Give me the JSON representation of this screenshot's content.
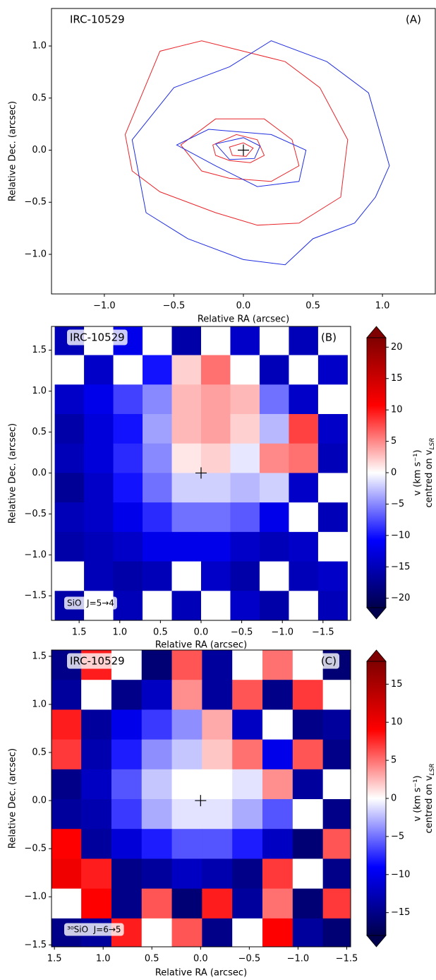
{
  "chart_data": [
    {
      "type": "contour",
      "title": "IRC-10529",
      "panel_label": "(A)",
      "x_label": "Relative RA (arcsec)",
      "y_label": "Relative Dec. (arcsec)",
      "xlim": [
        -1.38,
        1.38
      ],
      "ylim": [
        -1.38,
        1.36
      ],
      "xticks": [
        {
          "value": -1,
          "label": "−1.0"
        },
        {
          "value": -0.5,
          "label": "−0.5"
        },
        {
          "value": 0,
          "label": "0.0"
        },
        {
          "value": 0.5,
          "label": "0.5"
        },
        {
          "value": 1,
          "label": "1.0"
        }
      ],
      "yticks": [
        {
          "value": -1,
          "label": "−1.0"
        },
        {
          "value": -0.5,
          "label": "−0.5"
        },
        {
          "value": 0,
          "label": "0.0"
        },
        {
          "value": 0.5,
          "label": "0.5"
        },
        {
          "value": 1,
          "label": "1.0"
        }
      ],
      "series": [
        {
          "color": "#e8252a",
          "contours": [
            {
              "x": [
                -0.85,
                -0.6,
                -0.3,
                0.0,
                0.3,
                0.55,
                0.75,
                0.7,
                0.4,
                0.1,
                -0.2,
                -0.6,
                -0.8
              ],
              "y": [
                0.15,
                0.95,
                1.05,
                0.95,
                0.85,
                0.6,
                0.1,
                -0.45,
                -0.7,
                -0.72,
                -0.6,
                -0.4,
                -0.2
              ]
            },
            {
              "x": [
                -0.45,
                -0.2,
                0.15,
                0.35,
                0.4,
                0.2,
                -0.1,
                -0.3
              ],
              "y": [
                0.05,
                0.3,
                0.3,
                0.1,
                -0.15,
                -0.3,
                -0.27,
                -0.2
              ]
            },
            {
              "x": [
                -0.22,
                -0.05,
                0.1,
                0.15,
                0.05,
                -0.1,
                -0.2
              ],
              "y": [
                0.05,
                0.15,
                0.1,
                -0.05,
                -0.12,
                -0.1,
                -0.05
              ]
            },
            {
              "x": [
                -0.1,
                0,
                0.07,
                0.02,
                -0.08
              ],
              "y": [
                0.03,
                0.07,
                0.02,
                -0.06,
                -0.05
              ]
            }
          ]
        },
        {
          "color": "#1f2de0",
          "contours": [
            {
              "x": [
                -0.8,
                -0.5,
                -0.1,
                0.2,
                0.6,
                0.9,
                1.05,
                0.95,
                0.8,
                0.5,
                0.3,
                0.0,
                -0.4,
                -0.7
              ],
              "y": [
                0.1,
                0.6,
                0.8,
                1.05,
                0.85,
                0.55,
                -0.15,
                -0.45,
                -0.7,
                -0.85,
                -1.1,
                -1.05,
                -0.85,
                -0.6
              ]
            },
            {
              "x": [
                -0.48,
                -0.25,
                0.2,
                0.45,
                0.4,
                0.1,
                -0.2
              ],
              "y": [
                0.05,
                0.2,
                0.15,
                0.0,
                -0.3,
                -0.35,
                -0.15
              ]
            },
            {
              "x": [
                -0.2,
                0,
                0.12,
                0.08,
                -0.1
              ],
              "y": [
                0.06,
                0.12,
                0.04,
                -0.08,
                -0.09
              ]
            }
          ]
        }
      ]
    },
    {
      "type": "heatmap",
      "title": "IRC-10529",
      "panel_label": "(B)",
      "line_label": "SiO  J=5→4",
      "x_label": "Relative RA (arcsec)",
      "y_label": "Relative Dec. (arcsec)",
      "colorbar_label": "v (km s⁻¹)",
      "colorbar_label2": "centred on v",
      "colorbar_label2_sub": "LSR",
      "xlim": [
        1.84,
        -1.84
      ],
      "ylim": [
        -1.8,
        1.79
      ],
      "xticks": [
        1.5,
        {
          "value": 1,
          "label": "1.0"
        },
        0.5,
        {
          "value": 0,
          "label": "0.0"
        },
        {
          "value": -0.5,
          "label": "−0.5"
        },
        {
          "value": -1,
          "label": "−1.0"
        },
        {
          "value": -1.5,
          "label": "−1.5"
        }
      ],
      "yticks": [
        1.5,
        {
          "value": 1,
          "label": "1.0"
        },
        0.5,
        {
          "value": 0,
          "label": "0.0"
        },
        {
          "value": -0.5,
          "label": "−0.5"
        },
        {
          "value": -1,
          "label": "−1.0"
        },
        {
          "value": -1.5,
          "label": "−1.5"
        }
      ],
      "clim": [
        -21.5,
        21.5
      ],
      "cticks": [
        20,
        15,
        10,
        5,
        0,
        {
          "value": -5,
          "label": "−5"
        },
        {
          "value": -10,
          "label": "−10"
        },
        {
          "value": -15,
          "label": "−15"
        },
        {
          "value": -20,
          "label": "−20"
        }
      ],
      "colormap": [
        "#00004c",
        "#0000ff",
        "#ffffff",
        "#ff0000",
        "#7f0000"
      ],
      "x": [
        1.62,
        1.26,
        0.9,
        0.54,
        0.18,
        -0.18,
        -0.54,
        -0.9,
        -1.26,
        -1.62
      ],
      "y": [
        1.62,
        1.26,
        0.9,
        0.54,
        0.18,
        -0.18,
        -0.54,
        -0.9,
        -1.26,
        -1.62
      ],
      "z": [
        [
          -15,
          0,
          -12,
          0,
          -16,
          0,
          -14,
          0,
          -15,
          0
        ],
        [
          0,
          -14,
          0,
          -10,
          2,
          6,
          0,
          -15,
          0,
          -14
        ],
        [
          -14,
          -12,
          -8,
          -5,
          3,
          4,
          3,
          -6,
          -14,
          0
        ],
        [
          -16,
          -13,
          -10,
          -4,
          3,
          4,
          2,
          -3,
          8,
          -14
        ],
        [
          -15,
          -13,
          -9,
          -5,
          1,
          2,
          -1,
          5,
          6,
          -15
        ],
        [
          -17,
          -14,
          -10,
          -6,
          -2,
          -2,
          -3,
          -2,
          -14,
          0
        ],
        [
          -15,
          -14,
          -12,
          -9,
          -6,
          -6,
          -7,
          -12,
          0,
          -15
        ],
        [
          -16,
          -15,
          -14,
          -12,
          -12,
          -12,
          -14,
          -15,
          -14,
          0
        ],
        [
          0,
          -15,
          -16,
          -15,
          0,
          -14,
          -16,
          0,
          -15,
          -14
        ],
        [
          -16,
          0,
          -15,
          0,
          -15,
          0,
          -14,
          -16,
          0,
          -15
        ]
      ]
    },
    {
      "type": "heatmap",
      "title": "IRC-10529",
      "panel_label": "(C)",
      "line_label": "³⁰SiO  J=6→5",
      "x_label": "Relative RA (arcsec)",
      "y_label": "Relative Dec. (arcsec)",
      "colorbar_label": "v (km s⁻¹)",
      "colorbar_label2": "centred on v",
      "colorbar_label2_sub": "LSR",
      "xlim": [
        1.53,
        -1.54
      ],
      "ylim": [
        -1.52,
        1.565
      ],
      "xticks": [
        1.5,
        {
          "value": 1,
          "label": "1.0"
        },
        0.5,
        {
          "value": 0,
          "label": "0.0"
        },
        {
          "value": -0.5,
          "label": "−0.5"
        },
        {
          "value": -1,
          "label": "−1.0"
        },
        {
          "value": -1.5,
          "label": "−1.5"
        }
      ],
      "yticks": [
        1.5,
        {
          "value": 1,
          "label": "1.0"
        },
        0.5,
        {
          "value": 0,
          "label": "0.0"
        },
        {
          "value": -0.5,
          "label": "−0.5"
        },
        {
          "value": -1,
          "label": "−1.0"
        },
        {
          "value": -1.5,
          "label": "−1.5"
        }
      ],
      "clim": [
        -18,
        18
      ],
      "cticks": [
        15,
        10,
        5,
        0,
        {
          "value": -5,
          "label": "−5"
        },
        {
          "value": -10,
          "label": "−10"
        },
        {
          "value": -15,
          "label": "−15"
        }
      ],
      "colormap": [
        "#00004c",
        "#0000ff",
        "#ffffff",
        "#ff0000",
        "#7f0000"
      ],
      "x": [
        1.38,
        1.07,
        0.76,
        0.45,
        0.14,
        -0.17,
        -0.48,
        -0.79,
        -1.1,
        -1.41
      ],
      "y": [
        1.41,
        1.1,
        0.79,
        0.48,
        0.17,
        -0.14,
        -0.45,
        -0.76,
        -1.07,
        -1.38
      ],
      "z": [
        [
          -15,
          8,
          0,
          -16,
          6,
          -14,
          0,
          5,
          0,
          -16
        ],
        [
          -14,
          0,
          -15,
          -12,
          4,
          -14,
          6,
          -15,
          7,
          0
        ],
        [
          8,
          -14,
          -10,
          -7,
          -4,
          3,
          -12,
          0,
          -15,
          -14
        ],
        [
          7,
          -13,
          -8,
          -4,
          -2,
          2,
          5,
          -10,
          6,
          -15
        ],
        [
          -15,
          -12,
          -6,
          -2,
          0,
          0,
          -1,
          4,
          -14,
          0
        ],
        [
          -14,
          -13,
          -7,
          -3,
          -1,
          -1,
          -3,
          -6,
          0,
          -15
        ],
        [
          9,
          -14,
          -11,
          -8,
          -6,
          -6,
          -8,
          -12,
          -16,
          6
        ],
        [
          10,
          8,
          -15,
          -14,
          -12,
          -13,
          -15,
          7,
          0,
          -15
        ],
        [
          0,
          9,
          -15,
          6,
          -16,
          8,
          -14,
          5,
          -16,
          7
        ],
        [
          -15,
          -14,
          8,
          0,
          6,
          -15,
          0,
          9,
          -14,
          -16
        ]
      ]
    }
  ]
}
